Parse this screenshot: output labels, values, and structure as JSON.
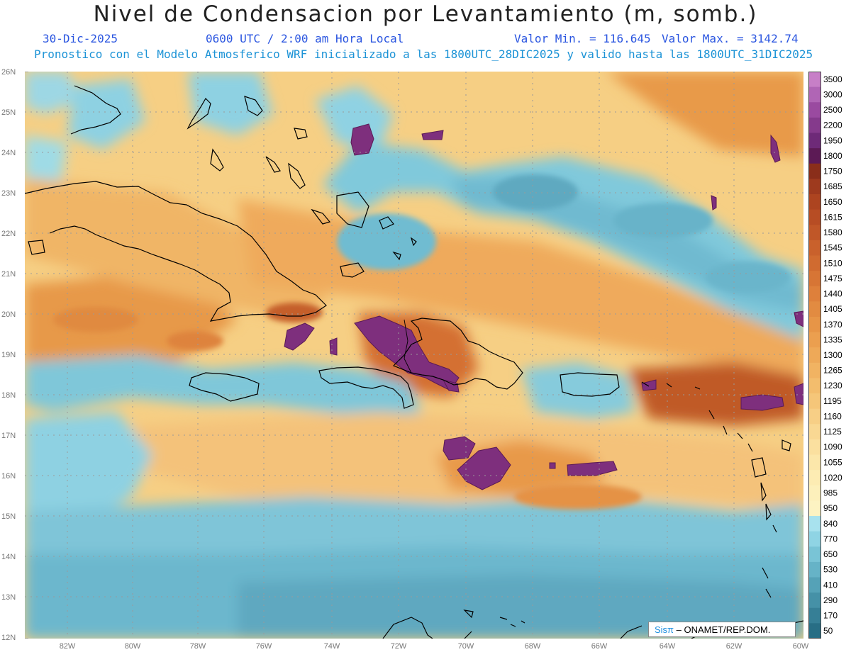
{
  "title": "Nivel de Condensacion por Levantamiento (m, somb.)",
  "date": "30-Dic-2025",
  "time": "0600 UTC / 2:00 am Hora Local",
  "value_min": "Valor Min. = 116.645",
  "value_max": "Valor Max. = 3142.74",
  "model_line": "Pronostico con el Modelo Atmosferico WRF inicializado a las 1800UTC_28DIC2025 y valido hasta las  1800UTC_31DIC2025",
  "lat_labels": [
    "26N",
    "25N",
    "24N",
    "23N",
    "22N",
    "21N",
    "20N",
    "19N",
    "18N",
    "17N",
    "16N",
    "15N",
    "14N",
    "13N",
    "12N"
  ],
  "lon_labels": [
    "82W",
    "80W",
    "78W",
    "76W",
    "74W",
    "72W",
    "70W",
    "68W",
    "66W",
    "64W",
    "62W",
    "60W"
  ],
  "colorbar": {
    "labels": [
      "3500",
      "3000",
      "2500",
      "2200",
      "1950",
      "1800",
      "1750",
      "1685",
      "1650",
      "1615",
      "1580",
      "1545",
      "1510",
      "1475",
      "1440",
      "1405",
      "1370",
      "1335",
      "1300",
      "1265",
      "1230",
      "1195",
      "1160",
      "1125",
      "1090",
      "1055",
      "1020",
      "985",
      "950",
      "840",
      "770",
      "650",
      "530",
      "410",
      "290",
      "170",
      "50"
    ],
    "colors": [
      "#c77fc7",
      "#b065b5",
      "#9a4aa0",
      "#853a8c",
      "#6e2a78",
      "#5c1a55",
      "#8a2e1a",
      "#9e3a1e",
      "#ad4420",
      "#b74d24",
      "#c05728",
      "#c9612c",
      "#d06b30",
      "#d77535",
      "#de803b",
      "#e28b41",
      "#e79547",
      "#eb9f4f",
      "#eea958",
      "#f1b362",
      "#f3bd6d",
      "#f5c679",
      "#f7cf86",
      "#f9d893",
      "#fbe09f",
      "#fce7aa",
      "#fdecb3",
      "#fdf0bb",
      "#fdf3c2",
      "#a8e2ee",
      "#8fd4e4",
      "#79c4d6",
      "#66b3c7",
      "#55a2b7",
      "#4591a7",
      "#367f96",
      "#286e85"
    ]
  },
  "credit": {
    "logo": "Sisπ",
    "text": "– ONAMET/REP.DOM."
  },
  "colors": {
    "title_blue": "#2a55e0",
    "model_blue": "#1c93d6"
  }
}
